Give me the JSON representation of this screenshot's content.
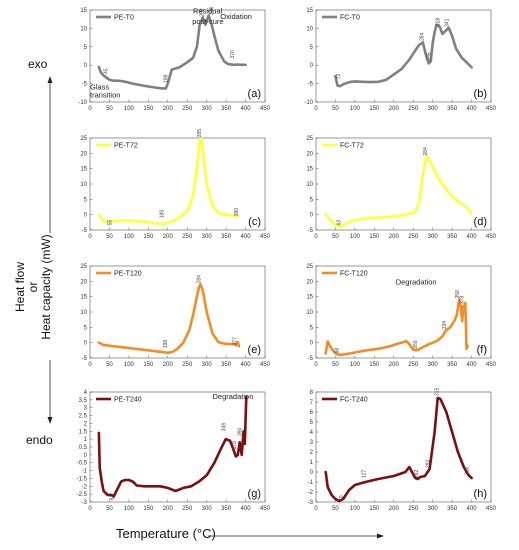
{
  "labels": {
    "exo": "exo",
    "endo": "endo",
    "ylabel_1": "Heat flow",
    "ylabel_or": "or",
    "ylabel_2": "Heat capacity (mW)",
    "xlabel": "Temperature (°C)"
  },
  "chart_data": [
    {
      "type": "line",
      "series_name": "PE-T0",
      "panel_label": "(a)",
      "color": "#808080",
      "xlim": [
        0,
        450
      ],
      "ylim": [
        -10,
        15
      ],
      "xticks": [
        0,
        50,
        100,
        150,
        200,
        250,
        300,
        350,
        400,
        450
      ],
      "yticks": [
        -10,
        -5,
        0,
        5,
        10,
        15
      ],
      "x": [
        23,
        28,
        35,
        45,
        50,
        60,
        70,
        80,
        95,
        110,
        130,
        150,
        170,
        185,
        195,
        200,
        210,
        230,
        250,
        265,
        275,
        282,
        290,
        297,
        305,
        313,
        320,
        330,
        345,
        355,
        370,
        380,
        390,
        400
      ],
      "y": [
        -0.5,
        -2,
        -2.8,
        -3.6,
        -3.9,
        -4.2,
        -4.2,
        -4.3,
        -4.6,
        -5,
        -5.4,
        -5.8,
        -6.1,
        -6.3,
        -6.3,
        -5,
        -1.2,
        -0.6,
        0.8,
        2,
        5,
        11,
        13,
        11,
        13.5,
        11,
        8,
        4,
        1,
        0.3,
        0.1,
        0.2,
        0.1,
        0.1
      ],
      "annotations": [
        {
          "text": "Residual",
          "x": 265,
          "y": 14
        },
        {
          "text": "post-cure",
          "x": 263,
          "y": 11.2
        },
        {
          "text": "Oxidation",
          "x": 335,
          "y": 12.5
        },
        {
          "text": "Glass",
          "x": 0,
          "y": -6.6
        },
        {
          "text": "transition",
          "x": 0,
          "y": -8.8
        }
      ],
      "point_labels": [
        {
          "text": "292",
          "x": 292,
          "y": 13.2
        },
        {
          "text": "316",
          "x": 316,
          "y": 13.6
        },
        {
          "text": "199",
          "x": 199,
          "y": -4.8
        },
        {
          "text": "370",
          "x": 370,
          "y": 1.8
        },
        {
          "text": "45",
          "x": 45,
          "y": -2.4
        }
      ]
    },
    {
      "type": "line",
      "series_name": "FC-T0",
      "panel_label": "(b)",
      "color": "#808080",
      "xlim": [
        0,
        450
      ],
      "ylim": [
        -10,
        15
      ],
      "xticks": [
        0,
        50,
        100,
        150,
        200,
        250,
        300,
        350,
        400,
        450
      ],
      "yticks": [
        -10,
        -5,
        0,
        5,
        10,
        15
      ],
      "x": [
        50,
        55,
        62,
        70,
        80,
        90,
        100,
        120,
        140,
        160,
        180,
        200,
        220,
        240,
        255,
        265,
        275,
        282,
        290,
        295,
        300,
        305,
        310,
        318,
        325,
        335,
        341,
        350,
        360,
        375,
        390,
        400
      ],
      "y": [
        -3,
        -5.5,
        -5.7,
        -5.2,
        -4.8,
        -4.5,
        -4.4,
        -4.5,
        -4.6,
        -4.5,
        -4,
        -2.5,
        -1,
        1.5,
        4,
        5.5,
        6.2,
        3,
        0.5,
        1,
        6,
        9,
        11,
        10.5,
        8.5,
        9.5,
        10.2,
        8,
        4.5,
        2,
        0.5,
        -0.6
      ],
      "annotations": [],
      "point_labels": [
        {
          "text": "284",
          "x": 276,
          "y": 6.6
        },
        {
          "text": "318",
          "x": 318,
          "y": 10.6
        },
        {
          "text": "341",
          "x": 341,
          "y": 10.4
        },
        {
          "text": "295",
          "x": 295,
          "y": 1.2
        },
        {
          "text": "72",
          "x": 62,
          "y": -3.8
        }
      ]
    },
    {
      "type": "line",
      "series_name": "PE-T72",
      "panel_label": "(c)",
      "color": "#ffff33",
      "xlim": [
        0,
        450
      ],
      "ylim": [
        -5,
        25
      ],
      "xticks": [
        0,
        50,
        100,
        150,
        200,
        250,
        300,
        350,
        400,
        450
      ],
      "yticks": [
        -5,
        0,
        5,
        10,
        15,
        20,
        25
      ],
      "x": [
        23,
        28,
        35,
        45,
        55,
        70,
        90,
        110,
        130,
        150,
        170,
        189,
        200,
        215,
        230,
        250,
        265,
        275,
        281,
        285,
        290,
        300,
        315,
        330,
        350,
        365,
        380
      ],
      "y": [
        0,
        -1,
        -2,
        -2.3,
        -2.2,
        -2,
        -1.9,
        -2,
        -2.2,
        -2.5,
        -2.9,
        -3,
        -2.7,
        -2,
        -0.8,
        1,
        6,
        15,
        23,
        25,
        21,
        10,
        3,
        0.5,
        0,
        -0.2,
        -0.5
      ],
      "annotations": [],
      "point_labels": [
        {
          "text": "285",
          "x": 285,
          "y": 25.2
        },
        {
          "text": "189",
          "x": 189,
          "y": -1.2
        },
        {
          "text": "380",
          "x": 380,
          "y": -0.5
        },
        {
          "text": "55",
          "x": 55,
          "y": -3.5
        }
      ]
    },
    {
      "type": "line",
      "series_name": "FC-T72",
      "panel_label": "(d)",
      "color": "#ffff33",
      "xlim": [
        0,
        450
      ],
      "ylim": [
        -5,
        25
      ],
      "xticks": [
        0,
        50,
        100,
        150,
        200,
        250,
        300,
        350,
        400,
        450
      ],
      "yticks": [
        -5,
        0,
        5,
        10,
        15,
        20,
        25
      ],
      "x": [
        25,
        40,
        55,
        63,
        75,
        100,
        130,
        160,
        190,
        210,
        230,
        245,
        255,
        265,
        275,
        284,
        295,
        310,
        330,
        350,
        370,
        390,
        400
      ],
      "y": [
        0,
        -2.2,
        -3.8,
        -3.9,
        -3,
        -1.8,
        -1.2,
        -1,
        -0.7,
        -0.4,
        0,
        0.3,
        1,
        4,
        13,
        19,
        17,
        13,
        9,
        6,
        4,
        2,
        0.4
      ],
      "annotations": [],
      "point_labels": [
        {
          "text": "284",
          "x": 286,
          "y": 19.3
        },
        {
          "text": "63",
          "x": 63,
          "y": -3.5
        }
      ]
    },
    {
      "type": "line",
      "series_name": "PE-T120",
      "panel_label": "(e)",
      "color": "#f28c28",
      "xlim": [
        0,
        450
      ],
      "ylim": [
        -5,
        25
      ],
      "xticks": [
        0,
        50,
        100,
        150,
        200,
        250,
        300,
        350,
        400,
        450
      ],
      "yticks": [
        -5,
        0,
        5,
        10,
        15,
        20,
        25
      ],
      "x": [
        23,
        28,
        35,
        45,
        55,
        70,
        90,
        110,
        130,
        150,
        170,
        190,
        198,
        210,
        225,
        240,
        255,
        265,
        275,
        280,
        284,
        290,
        300,
        315,
        330,
        345,
        360,
        370,
        375,
        380,
        383
      ],
      "y": [
        0,
        -0.3,
        -0.8,
        -0.9,
        -1.1,
        -1.3,
        -1.6,
        -1.9,
        -2.2,
        -2.5,
        -2.8,
        -3.1,
        -3.3,
        -3.1,
        -2,
        0,
        4,
        9,
        15,
        18,
        19,
        17,
        10,
        3,
        0.2,
        -0.3,
        -0.5,
        -0.4,
        -0.8,
        0.2,
        -1.2
      ],
      "annotations": [],
      "point_labels": [
        {
          "text": "284",
          "x": 284,
          "y": 19.3
        },
        {
          "text": "198",
          "x": 198,
          "y": -1.8
        },
        {
          "text": "377",
          "x": 377,
          "y": -0.9
        }
      ]
    },
    {
      "type": "line",
      "series_name": "FC-T120",
      "panel_label": "(f)",
      "color": "#f28c28",
      "xlim": [
        0,
        450
      ],
      "ylim": [
        -5,
        25
      ],
      "xticks": [
        0,
        50,
        100,
        150,
        200,
        250,
        300,
        350,
        400,
        450
      ],
      "yticks": [
        -5,
        0,
        5,
        10,
        15,
        20,
        25
      ],
      "x": [
        25,
        30,
        35,
        45,
        55,
        60,
        75,
        100,
        130,
        160,
        190,
        210,
        225,
        232,
        240,
        250,
        260,
        270,
        290,
        310,
        325,
        334,
        345,
        355,
        362,
        368,
        372,
        376,
        379,
        381,
        384,
        387,
        390
      ],
      "y": [
        -3.5,
        0.4,
        -1,
        -2.8,
        -3.8,
        -4,
        -3.8,
        -3.2,
        -2.5,
        -2,
        -1.2,
        -0.3,
        0.2,
        0.5,
        -0.5,
        -2.3,
        -2.5,
        -1.8,
        -0.5,
        0.5,
        2,
        4,
        5,
        7,
        9,
        14,
        12,
        7,
        12,
        10,
        13,
        -2,
        -1
      ],
      "annotations": [
        {
          "text": "Degradation",
          "x": 205,
          "y": 19
        }
      ],
      "point_labels": [
        {
          "text": "358",
          "x": 368,
          "y": 14.4
        },
        {
          "text": "379",
          "x": 379,
          "y": 12.6
        },
        {
          "text": "334",
          "x": 334,
          "y": 4.4
        },
        {
          "text": "260",
          "x": 260,
          "y": -2
        },
        {
          "text": "58",
          "x": 58,
          "y": -3.5
        }
      ]
    },
    {
      "type": "line",
      "series_name": "PE-T240",
      "panel_label": "(g)",
      "color": "#7b0f0f",
      "xlim": [
        0,
        450
      ],
      "ylim": [
        -3,
        4
      ],
      "xticks": [
        0,
        50,
        100,
        150,
        200,
        250,
        300,
        350,
        400,
        450
      ],
      "yticks": [
        -3,
        -2.5,
        -2,
        -1.5,
        -1,
        -0.5,
        0,
        0.5,
        1,
        1.5,
        2,
        2.5,
        3,
        3.5,
        4
      ],
      "x": [
        23,
        25,
        30,
        35,
        45,
        55,
        61,
        70,
        80,
        90,
        100,
        110,
        120,
        140,
        160,
        180,
        200,
        220,
        240,
        260,
        280,
        300,
        320,
        335,
        349,
        360,
        368,
        375,
        380,
        385,
        390,
        395,
        398,
        402
      ],
      "y": [
        1.4,
        -0.8,
        -1.7,
        -2.3,
        -2.55,
        -2.55,
        -2.65,
        -2.2,
        -1.7,
        -1.6,
        -1.6,
        -1.7,
        -1.95,
        -2,
        -2,
        -2,
        -2.1,
        -2.3,
        -2.1,
        -2.0,
        -1.7,
        -1.3,
        -0.5,
        0.3,
        1,
        0.9,
        0.4,
        -0.1,
        0,
        0.8,
        0,
        1.5,
        0.7,
        3.7
      ],
      "annotations": [
        {
          "text": "Degradation",
          "x": 315,
          "y": 3.55
        }
      ],
      "point_labels": [
        {
          "text": "349",
          "x": 349,
          "y": 1.5
        },
        {
          "text": "378",
          "x": 376,
          "y": 0.35
        },
        {
          "text": "390",
          "x": 390,
          "y": 1.2
        },
        {
          "text": "61",
          "x": 61,
          "y": -2.9
        }
      ]
    },
    {
      "type": "line",
      "series_name": "FC-T240",
      "panel_label": "(h)",
      "color": "#7b0f0f",
      "xlim": [
        0,
        450
      ],
      "ylim": [
        -3,
        8
      ],
      "xticks": [
        0,
        50,
        100,
        150,
        200,
        250,
        300,
        350,
        400,
        450
      ],
      "yticks": [
        -3,
        -2,
        -1,
        0,
        1,
        2,
        3,
        4,
        5,
        6,
        7,
        8
      ],
      "x": [
        25,
        30,
        40,
        50,
        60,
        70,
        85,
        100,
        127,
        160,
        200,
        230,
        240,
        255,
        262,
        268,
        280,
        292,
        305,
        313,
        320,
        335,
        350,
        365,
        380,
        392,
        400
      ],
      "y": [
        0,
        -1.5,
        -2.3,
        -2.7,
        -2.9,
        -2.7,
        -1.8,
        -1.3,
        -1,
        -0.7,
        -0.4,
        0,
        0.5,
        -0.6,
        -0.7,
        -0.5,
        -0.4,
        0.3,
        4,
        7.4,
        7.3,
        6,
        4,
        2,
        0.5,
        -0.3,
        -0.6
      ],
      "annotations": [],
      "point_labels": [
        {
          "text": "315",
          "x": 315,
          "y": 7.6
        },
        {
          "text": "262",
          "x": 262,
          "y": -0.6
        },
        {
          "text": "292",
          "x": 292,
          "y": 0.4
        },
        {
          "text": "127",
          "x": 127,
          "y": -0.6
        },
        {
          "text": "392",
          "x": 392,
          "y": -0.3
        },
        {
          "text": "70",
          "x": 70,
          "y": -2.9
        }
      ]
    }
  ]
}
